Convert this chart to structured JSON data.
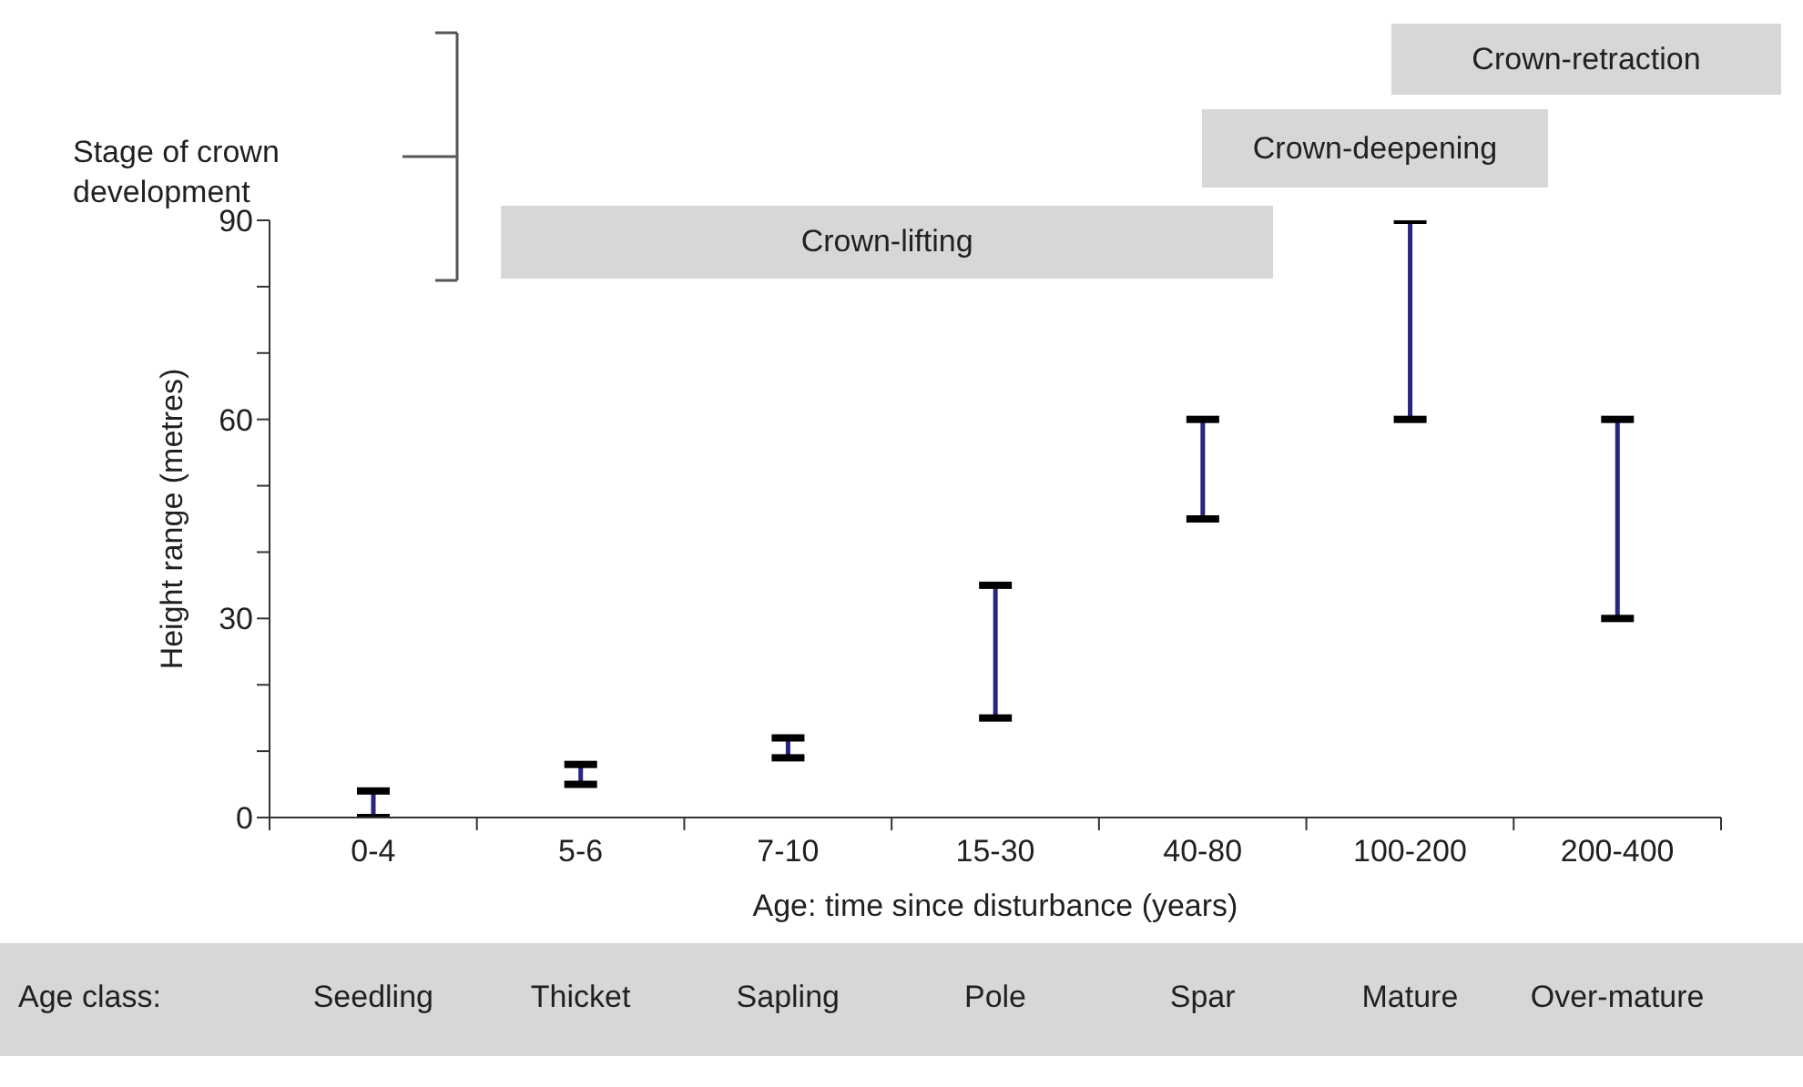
{
  "chart_data": {
    "type": "bar",
    "ylabel": "Height range (metres)",
    "xlabel": "Age: time since disturbance (years)",
    "categories": [
      "0-4",
      "5-6",
      "7-10",
      "15-30",
      "40-80",
      "100-200",
      "200-400"
    ],
    "base": [
      0,
      5,
      9,
      15,
      45,
      60,
      30
    ],
    "values": [
      4,
      3,
      3,
      20,
      15,
      30,
      30
    ],
    "color": "#262680",
    "ylim": [
      0,
      90
    ],
    "yticks": [
      0,
      {
        "value": 10,
        "label": null
      },
      {
        "value": 20,
        "label": null
      },
      30,
      {
        "value": 40,
        "label": null
      },
      {
        "value": 50,
        "label": null
      },
      60,
      {
        "value": 70,
        "label": null
      },
      {
        "value": 80,
        "label": null
      },
      90
    ],
    "annotations": [
      "Stage of crown development",
      "Crown-lifting",
      "Crown-deepening",
      "Crown-retraction",
      "Age class:",
      "Seedling",
      "Thicket",
      "Sapling",
      "Pole",
      "Spar",
      "Mature",
      "Over-mature"
    ]
  }
}
